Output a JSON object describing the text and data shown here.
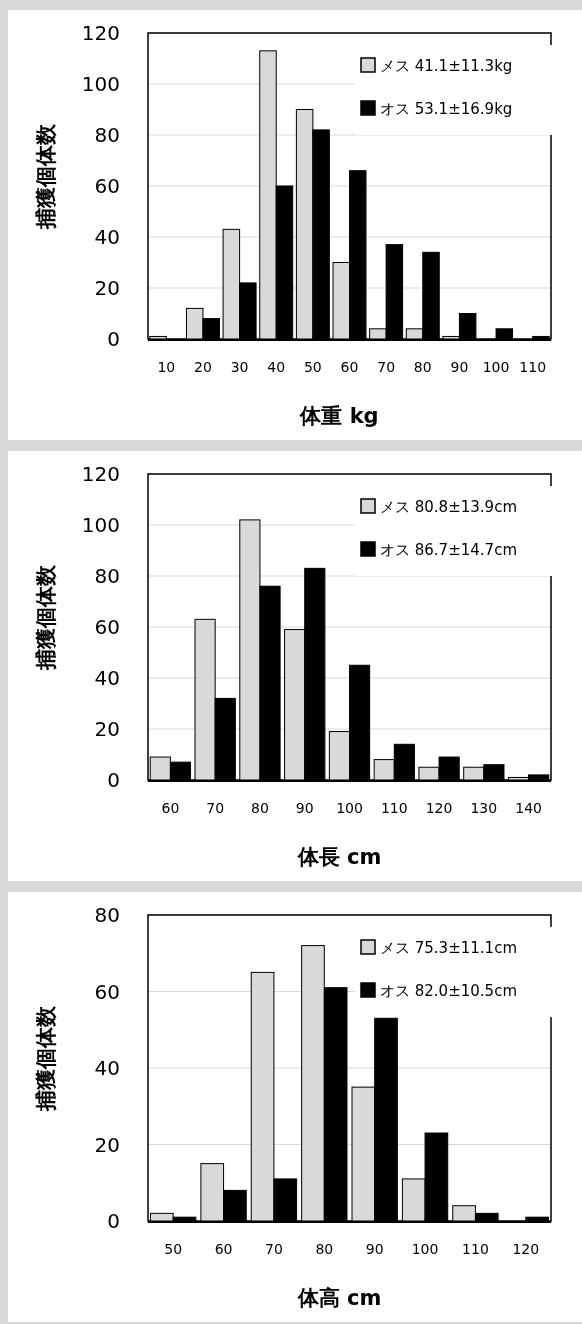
{
  "chart_data": [
    {
      "type": "bar",
      "xlabel": "体重 kg",
      "ylabel": "捕獲個体数",
      "categories": [
        "10",
        "20",
        "30",
        "40",
        "50",
        "60",
        "70",
        "80",
        "90",
        "100",
        "110"
      ],
      "series": [
        {
          "name": "メス 41.1±11.3kg",
          "color": "#d9d9d9",
          "values": [
            1,
            12,
            43,
            113,
            90,
            30,
            4,
            4,
            1,
            0,
            0
          ]
        },
        {
          "name": "オス 53.1±16.9kg",
          "color": "#000000",
          "values": [
            0,
            8,
            22,
            60,
            82,
            66,
            37,
            34,
            10,
            4,
            1
          ]
        }
      ],
      "ylim": [
        0,
        120
      ],
      "yticks": [
        0,
        20,
        40,
        60,
        80,
        100,
        120
      ],
      "grid": "y",
      "legend": "top right"
    },
    {
      "type": "bar",
      "xlabel": "体長 cm",
      "ylabel": "捕獲個体数",
      "categories": [
        "60",
        "70",
        "80",
        "90",
        "100",
        "110",
        "120",
        "130",
        "140"
      ],
      "series": [
        {
          "name": "メス 80.8±13.9cm",
          "color": "#d9d9d9",
          "values": [
            9,
            63,
            102,
            59,
            19,
            8,
            5,
            5,
            1
          ]
        },
        {
          "name": "オス 86.7±14.7cm",
          "color": "#000000",
          "values": [
            7,
            32,
            76,
            83,
            45,
            14,
            9,
            6,
            2
          ]
        }
      ],
      "ylim": [
        0,
        120
      ],
      "yticks": [
        0,
        20,
        40,
        60,
        80,
        100,
        120
      ],
      "grid": "y",
      "legend": "top right"
    },
    {
      "type": "bar",
      "xlabel": "体高 cm",
      "ylabel": "捕獲個体数",
      "categories": [
        "50",
        "60",
        "70",
        "80",
        "90",
        "100",
        "110",
        "120"
      ],
      "series": [
        {
          "name": "メス 75.3±11.1cm",
          "color": "#d9d9d9",
          "values": [
            2,
            15,
            65,
            72,
            35,
            11,
            4,
            0
          ]
        },
        {
          "name": "オス 82.0±10.5cm",
          "color": "#000000",
          "values": [
            1,
            8,
            11,
            61,
            53,
            23,
            2,
            1
          ]
        }
      ],
      "ylim": [
        0,
        80
      ],
      "yticks": [
        0,
        20,
        40,
        60,
        80
      ],
      "grid": "y",
      "legend": "top right"
    }
  ]
}
